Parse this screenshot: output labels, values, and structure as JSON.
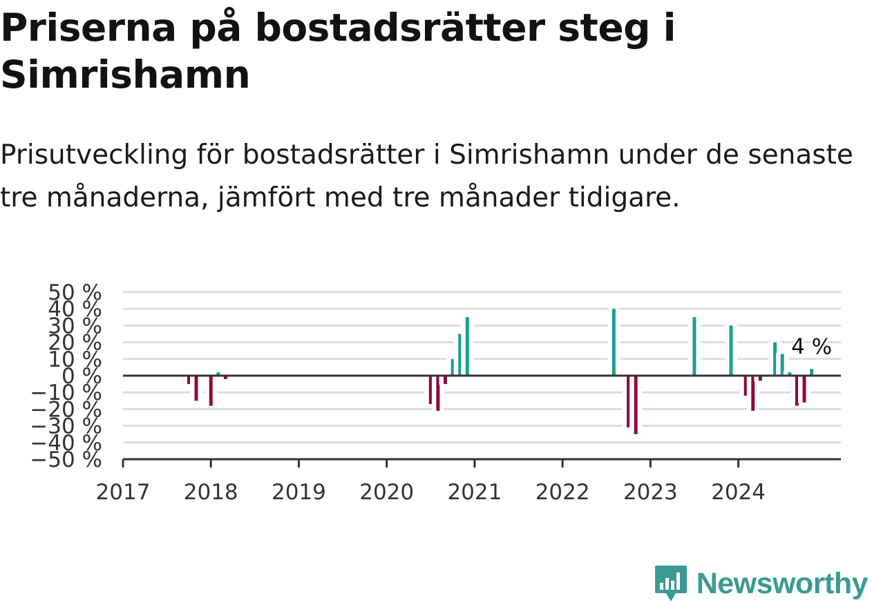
{
  "title": "Priserna på bostadsrätter steg i Simrishamn",
  "subtitle": "Prisutveckling för bostadsrätter i Simrishamn under de senaste tre månaderna, jämfört med tre månader tidigare.",
  "logo": {
    "text": "Newsworthy",
    "icon": "newsworthy-logo-icon"
  },
  "colors": {
    "positive": "#1a9e96",
    "negative": "#8e0a3e",
    "axis": "#333333",
    "grid": "#dddddd"
  },
  "chart_data": {
    "type": "bar",
    "title": "",
    "xlabel": "",
    "ylabel": "",
    "y_unit": "%",
    "ylim": [
      -50,
      50
    ],
    "y_ticks": [
      50,
      40,
      30,
      20,
      10,
      0,
      -10,
      -20,
      -30,
      -40,
      -50
    ],
    "y_tick_labels": [
      "50 %",
      "40 %",
      "30 %",
      "20 %",
      "10 %",
      "0 %",
      "−10 %",
      "−20 %",
      "−30 %",
      "−40 %",
      "−50 %"
    ],
    "x_range": [
      "2017-01",
      "2025-03"
    ],
    "x_ticks": [
      "2017-01",
      "2018-01",
      "2019-01",
      "2020-01",
      "2021-01",
      "2022-01",
      "2023-01",
      "2024-01"
    ],
    "x_tick_labels": [
      "2017",
      "2018",
      "2019",
      "2020",
      "2021",
      "2022",
      "2023",
      "2024"
    ],
    "grid": true,
    "legend": "none",
    "points": [
      {
        "x": "2017-10",
        "value": -5
      },
      {
        "x": "2017-11",
        "value": -15
      },
      {
        "x": "2017-12",
        "value": 0
      },
      {
        "x": "2018-01",
        "value": -18
      },
      {
        "x": "2018-02",
        "value": 2
      },
      {
        "x": "2018-03",
        "value": -2
      },
      {
        "x": "2020-07",
        "value": -17
      },
      {
        "x": "2020-08",
        "value": -21
      },
      {
        "x": "2020-09",
        "value": -5
      },
      {
        "x": "2020-10",
        "value": 10
      },
      {
        "x": "2020-11",
        "value": 25
      },
      {
        "x": "2020-12",
        "value": 35
      },
      {
        "x": "2022-08",
        "value": 40
      },
      {
        "x": "2022-10",
        "value": -31
      },
      {
        "x": "2022-11",
        "value": -35
      },
      {
        "x": "2023-07",
        "value": 35
      },
      {
        "x": "2023-12",
        "value": 30
      },
      {
        "x": "2024-02",
        "value": -12
      },
      {
        "x": "2024-03",
        "value": -21
      },
      {
        "x": "2024-04",
        "value": -3
      },
      {
        "x": "2024-06",
        "value": 20
      },
      {
        "x": "2024-07",
        "value": 13
      },
      {
        "x": "2024-08",
        "value": 2
      },
      {
        "x": "2024-09",
        "value": -18
      },
      {
        "x": "2024-10",
        "value": -16
      },
      {
        "x": "2024-11",
        "value": 4
      }
    ],
    "annotations": [
      {
        "x": "2024-11",
        "text": "4 %"
      }
    ]
  }
}
